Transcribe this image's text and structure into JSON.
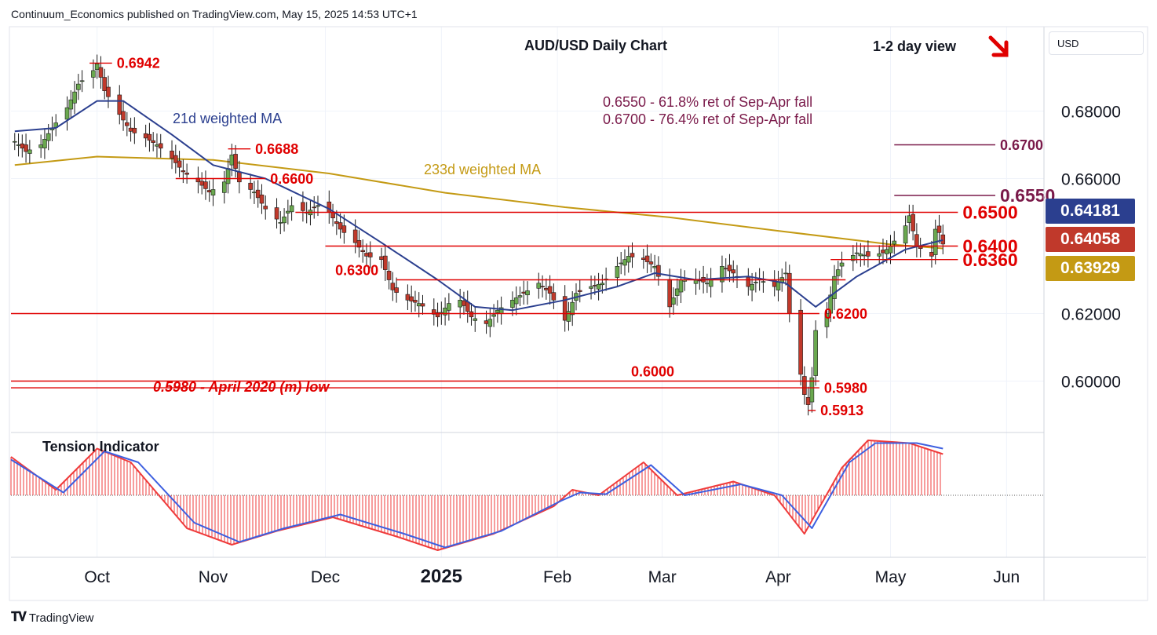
{
  "header": {
    "published_by": "Continuum_Economics published on TradingView.com, May 15, 2025 14:53 UTC+1"
  },
  "footer": {
    "logo_text": "TradingView"
  },
  "currency_selector": {
    "label": "USD"
  },
  "colors": {
    "red_line": "#e00000",
    "ma21": "#2b3f8f",
    "ma233": "#c49a14",
    "up_candle": "#6aa84f",
    "down_candle": "#c0392b",
    "maroon_text": "#7a1a4a",
    "tension_red": "#ef3b3b",
    "tension_blue": "#3d5fe0",
    "grid": "#f0f3fa",
    "axis_text": "#131722"
  },
  "price_tags": [
    {
      "value": "0.64181",
      "color": "#2b3f8f"
    },
    {
      "value": "0.64058",
      "color": "#c0392b"
    },
    {
      "value": "0.63929",
      "color": "#c49a14"
    }
  ],
  "chart_data": {
    "type": "candlestick",
    "title": "AUD/USD Daily Chart",
    "view_label": "1-2 day view",
    "view_direction": "down-right-arrow",
    "y_ticks": [
      "0.68000",
      "0.66000",
      "0.62000",
      "0.60000"
    ],
    "ylim": [
      0.585,
      0.705
    ],
    "x_ticks": [
      "Oct",
      "Nov",
      "Dec",
      "2025",
      "Feb",
      "Mar",
      "Apr",
      "May",
      "Jun"
    ],
    "x_range": [
      "2024-09-08",
      "2025-06-11"
    ],
    "annotations": {
      "ma21_label": "21d weighted MA",
      "ma233_label": "233d weighted MA",
      "fib1": "0.6550 - 61.8% ret of Sep-Apr fall",
      "fib2": "0.6700 - 76.4% ret of Sep-Apr fall",
      "low_2020": "0.5980 - April 2020 (m) low"
    },
    "levels": [
      {
        "label": "0.6942",
        "value": 0.6942,
        "x_from": "2024-09-29",
        "x_to": "2024-10-05",
        "label_side": "right",
        "color": "red"
      },
      {
        "label": "0.6688",
        "value": 0.6688,
        "x_from": "2024-11-05",
        "x_to": "2024-11-11",
        "label_side": "right",
        "color": "red"
      },
      {
        "label": "0.6600",
        "value": 0.66,
        "x_from": "2024-10-22",
        "x_to": "2024-11-15",
        "label_side": "right",
        "color": "red"
      },
      {
        "label": "0.6300",
        "value": 0.63,
        "x_from": "2024-12-20",
        "x_to": "2025-04-19",
        "label_side": "left",
        "color": "red"
      },
      {
        "label": "0.6200",
        "value": 0.62,
        "x_from": "2024-09-08",
        "x_to": "2025-04-12",
        "label_side": "right",
        "color": "red"
      },
      {
        "label": "0.6000",
        "value": 0.6,
        "x_from": "2024-09-08",
        "x_to": "2025-04-12",
        "label_side": "left",
        "color": "red"
      },
      {
        "label": "0.5980",
        "value": 0.598,
        "x_from": "2024-09-08",
        "x_to": "2025-04-12",
        "label_side": "right",
        "color": "red"
      },
      {
        "label": "0.5913",
        "value": 0.5913,
        "x_from": "2025-04-09",
        "x_to": "2025-04-11",
        "label_side": "right",
        "color": "red"
      },
      {
        "label": "0.6500",
        "value": 0.65,
        "x_from": "2024-11-23",
        "x_to": "2025-05-19",
        "label_side": "right",
        "color": "red",
        "big": true
      },
      {
        "label": "0.6400",
        "value": 0.64,
        "x_from": "2024-12-01",
        "x_to": "2025-05-19",
        "label_side": "right",
        "color": "red",
        "big": true
      },
      {
        "label": "0.6360",
        "value": 0.636,
        "x_from": "2025-04-15",
        "x_to": "2025-05-19",
        "label_side": "right",
        "color": "red",
        "big": true
      },
      {
        "label": "0.6550",
        "value": 0.655,
        "x_from": "2025-05-02",
        "x_to": "2025-05-29",
        "label_side": "right",
        "color": "maroon",
        "big": true
      },
      {
        "label": "0.6700",
        "value": 0.67,
        "x_from": "2025-05-02",
        "x_to": "2025-05-29",
        "label_side": "right",
        "color": "maroon"
      }
    ],
    "price_path": [
      [
        "2024-09-09",
        0.671
      ],
      [
        "2024-09-12",
        0.668
      ],
      [
        "2024-09-16",
        0.67
      ],
      [
        "2024-09-19",
        0.675
      ],
      [
        "2024-09-23",
        0.681
      ],
      [
        "2024-09-26",
        0.688
      ],
      [
        "2024-09-30",
        0.692
      ],
      [
        "2024-10-01",
        0.694
      ],
      [
        "2024-10-03",
        0.686
      ],
      [
        "2024-10-07",
        0.679
      ],
      [
        "2024-10-10",
        0.674
      ],
      [
        "2024-10-14",
        0.672
      ],
      [
        "2024-10-17",
        0.67
      ],
      [
        "2024-10-21",
        0.666
      ],
      [
        "2024-10-24",
        0.662
      ],
      [
        "2024-10-28",
        0.659
      ],
      [
        "2024-10-31",
        0.656
      ],
      [
        "2024-11-04",
        0.659
      ],
      [
        "2024-11-06",
        0.667
      ],
      [
        "2024-11-08",
        0.659
      ],
      [
        "2024-11-12",
        0.656
      ],
      [
        "2024-11-15",
        0.651
      ],
      [
        "2024-11-19",
        0.647
      ],
      [
        "2024-11-22",
        0.652
      ],
      [
        "2024-11-26",
        0.65
      ],
      [
        "2024-11-29",
        0.652
      ],
      [
        "2024-12-02",
        0.65
      ],
      [
        "2024-12-05",
        0.645
      ],
      [
        "2024-12-09",
        0.641
      ],
      [
        "2024-12-12",
        0.637
      ],
      [
        "2024-12-16",
        0.636
      ],
      [
        "2024-12-19",
        0.627
      ],
      [
        "2024-12-23",
        0.624
      ],
      [
        "2024-12-26",
        0.623
      ],
      [
        "2024-12-31",
        0.619
      ],
      [
        "2025-01-03",
        0.623
      ],
      [
        "2025-01-06",
        0.624
      ],
      [
        "2025-01-09",
        0.619
      ],
      [
        "2025-01-13",
        0.617
      ],
      [
        "2025-01-16",
        0.621
      ],
      [
        "2025-01-20",
        0.624
      ],
      [
        "2025-01-23",
        0.626
      ],
      [
        "2025-01-27",
        0.629
      ],
      [
        "2025-01-30",
        0.626
      ],
      [
        "2025-02-03",
        0.618
      ],
      [
        "2025-02-06",
        0.626
      ],
      [
        "2025-02-10",
        0.628
      ],
      [
        "2025-02-13",
        0.629
      ],
      [
        "2025-02-17",
        0.634
      ],
      [
        "2025-02-20",
        0.637
      ],
      [
        "2025-02-24",
        0.636
      ],
      [
        "2025-02-27",
        0.634
      ],
      [
        "2025-03-03",
        0.622
      ],
      [
        "2025-03-06",
        0.63
      ],
      [
        "2025-03-10",
        0.63
      ],
      [
        "2025-03-13",
        0.629
      ],
      [
        "2025-03-17",
        0.634
      ],
      [
        "2025-03-20",
        0.632
      ],
      [
        "2025-03-24",
        0.628
      ],
      [
        "2025-03-27",
        0.63
      ],
      [
        "2025-03-31",
        0.628
      ],
      [
        "2025-04-03",
        0.632
      ],
      [
        "2025-04-04",
        0.62
      ],
      [
        "2025-04-07",
        0.602
      ],
      [
        "2025-04-08",
        0.596
      ],
      [
        "2025-04-09",
        0.593
      ],
      [
        "2025-04-10",
        0.601
      ],
      [
        "2025-04-11",
        0.615
      ],
      [
        "2025-04-14",
        0.62
      ],
      [
        "2025-04-16",
        0.631
      ],
      [
        "2025-04-18",
        0.635
      ],
      [
        "2025-04-22",
        0.638
      ],
      [
        "2025-04-25",
        0.637
      ],
      [
        "2025-04-29",
        0.638
      ],
      [
        "2025-05-01",
        0.64
      ],
      [
        "2025-05-05",
        0.646
      ],
      [
        "2025-05-06",
        0.649
      ],
      [
        "2025-05-08",
        0.64
      ],
      [
        "2025-05-12",
        0.637
      ],
      [
        "2025-05-13",
        0.645
      ],
      [
        "2025-05-14",
        0.644
      ],
      [
        "2025-05-15",
        0.6406
      ]
    ],
    "ma21": [
      [
        "2024-09-09",
        0.674
      ],
      [
        "2024-09-20",
        0.675
      ],
      [
        "2024-10-01",
        0.683
      ],
      [
        "2024-10-08",
        0.683
      ],
      [
        "2024-10-21",
        0.673
      ],
      [
        "2024-11-01",
        0.664
      ],
      [
        "2024-11-15",
        0.66
      ],
      [
        "2024-12-02",
        0.651
      ],
      [
        "2024-12-16",
        0.641
      ],
      [
        "2024-12-31",
        0.63
      ],
      [
        "2025-01-10",
        0.622
      ],
      [
        "2025-01-20",
        0.621
      ],
      [
        "2025-02-03",
        0.624
      ],
      [
        "2025-02-17",
        0.628
      ],
      [
        "2025-02-27",
        0.632
      ],
      [
        "2025-03-10",
        0.63
      ],
      [
        "2025-03-24",
        0.631
      ],
      [
        "2025-04-03",
        0.629
      ],
      [
        "2025-04-11",
        0.622
      ],
      [
        "2025-04-22",
        0.631
      ],
      [
        "2025-05-05",
        0.639
      ],
      [
        "2025-05-15",
        0.6418
      ]
    ],
    "ma233": [
      [
        "2024-09-09",
        0.664
      ],
      [
        "2024-10-01",
        0.6665
      ],
      [
        "2024-11-01",
        0.6655
      ],
      [
        "2024-12-02",
        0.6615
      ],
      [
        "2025-01-02",
        0.6558
      ],
      [
        "2025-02-03",
        0.6515
      ],
      [
        "2025-03-03",
        0.6485
      ],
      [
        "2025-04-01",
        0.6445
      ],
      [
        "2025-05-01",
        0.6405
      ],
      [
        "2025-05-15",
        0.6393
      ]
    ],
    "tension": {
      "title": "Tension Indicator",
      "ylim": [
        -1,
        1
      ],
      "zero": 0,
      "red_series": [
        [
          "2024-09-08",
          0.7
        ],
        [
          "2024-09-20",
          0.1
        ],
        [
          "2024-10-01",
          0.85
        ],
        [
          "2024-10-10",
          0.6
        ],
        [
          "2024-10-25",
          -0.6
        ],
        [
          "2024-11-06",
          -0.9
        ],
        [
          "2024-11-18",
          -0.65
        ],
        [
          "2024-12-03",
          -0.4
        ],
        [
          "2024-12-20",
          -0.75
        ],
        [
          "2024-12-31",
          -1.0
        ],
        [
          "2025-01-15",
          -0.7
        ],
        [
          "2025-01-31",
          -0.2
        ],
        [
          "2025-02-05",
          0.1
        ],
        [
          "2025-02-12",
          0.0
        ],
        [
          "2025-02-24",
          0.6
        ],
        [
          "2025-03-05",
          0.0
        ],
        [
          "2025-03-20",
          0.25
        ],
        [
          "2025-03-31",
          0.0
        ],
        [
          "2025-04-08",
          -0.7
        ],
        [
          "2025-04-18",
          0.5
        ],
        [
          "2025-04-25",
          1.0
        ],
        [
          "2025-05-06",
          0.95
        ],
        [
          "2025-05-15",
          0.75
        ]
      ],
      "blue_series": [
        [
          "2024-09-08",
          0.65
        ],
        [
          "2024-09-22",
          0.05
        ],
        [
          "2024-10-03",
          0.8
        ],
        [
          "2024-10-12",
          0.6
        ],
        [
          "2024-10-27",
          -0.5
        ],
        [
          "2024-11-08",
          -0.85
        ],
        [
          "2024-11-20",
          -0.6
        ],
        [
          "2024-12-05",
          -0.35
        ],
        [
          "2024-12-22",
          -0.7
        ],
        [
          "2025-01-02",
          -0.95
        ],
        [
          "2025-01-17",
          -0.65
        ],
        [
          "2025-02-02",
          -0.1
        ],
        [
          "2025-02-07",
          0.05
        ],
        [
          "2025-02-14",
          0.02
        ],
        [
          "2025-02-26",
          0.55
        ],
        [
          "2025-03-07",
          0.0
        ],
        [
          "2025-03-22",
          0.2
        ],
        [
          "2025-04-02",
          0.0
        ],
        [
          "2025-04-10",
          -0.6
        ],
        [
          "2025-04-20",
          0.6
        ],
        [
          "2025-04-27",
          0.95
        ],
        [
          "2025-05-08",
          0.95
        ],
        [
          "2025-05-15",
          0.85
        ]
      ]
    }
  }
}
